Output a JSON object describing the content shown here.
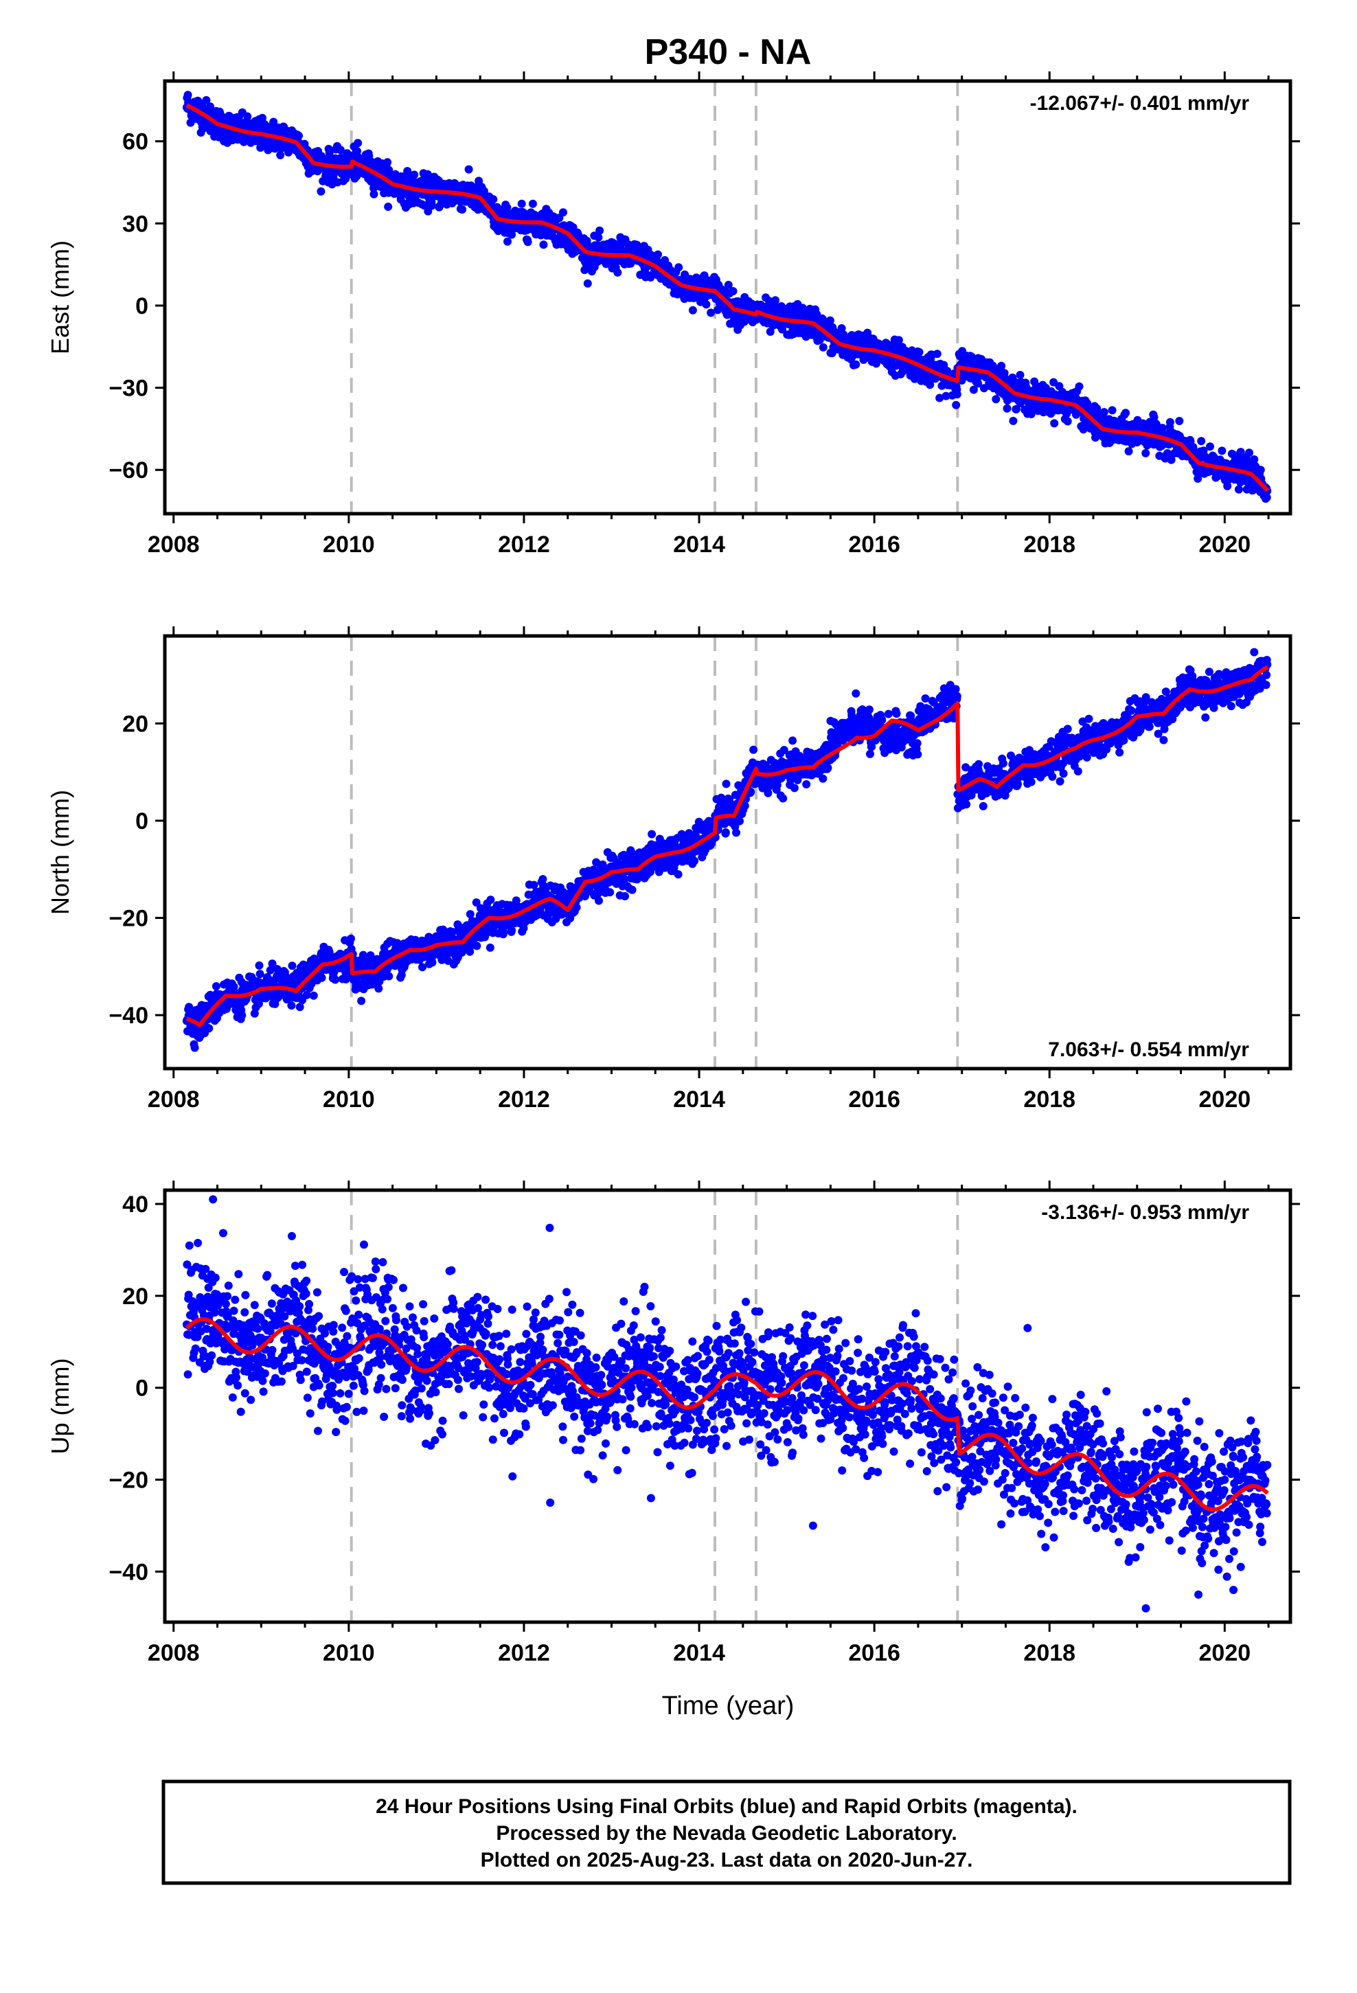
{
  "title": "P340 - NA",
  "xlabel": "Time (year)",
  "footer": {
    "line1": "24 Hour Positions Using Final Orbits (blue) and Rapid Orbits (magenta).",
    "line2": "Processed by the Nevada Geodetic Laboratory.",
    "line3": "Plotted on 2025-Aug-23. Last data on 2020-Jun-27."
  },
  "colors": {
    "points": "#0000ff",
    "model": "#ff0000",
    "events": "#bdbdbd",
    "frame": "#000000"
  },
  "chart_data": [
    {
      "type": "scatter",
      "panel": "east",
      "ylabel": "East (mm)",
      "rate_text": "-12.067+/- 0.401 mm/yr",
      "rate_position": "top-right",
      "xlim": [
        2007.9,
        2020.75
      ],
      "ylim": [
        -76,
        82
      ],
      "xticks": [
        2008,
        2010,
        2012,
        2014,
        2016,
        2018,
        2020
      ],
      "yticks": [
        -60,
        -30,
        0,
        30,
        60
      ],
      "grid": false,
      "event_lines": [
        2010.03,
        2014.18,
        2014.65,
        2016.95
      ],
      "data_range": [
        2008.15,
        2020.49
      ],
      "model": {
        "x": [
          2008.15,
          2008.5,
          2009.0,
          2009.4,
          2009.6,
          2010.03,
          2010.03,
          2010.5,
          2011.0,
          2011.5,
          2011.7,
          2012.2,
          2012.5,
          2012.7,
          2013.2,
          2013.5,
          2013.8,
          2014.18,
          2014.4,
          2014.65,
          2014.65,
          2015.0,
          2015.3,
          2015.6,
          2016.0,
          2016.5,
          2016.95,
          2016.95,
          2017.3,
          2017.6,
          2018.0,
          2018.3,
          2018.6,
          2019.0,
          2019.3,
          2019.5,
          2019.7,
          2020.0,
          2020.3,
          2020.49
        ],
        "y": [
          73,
          66,
          63,
          59,
          52,
          51,
          53,
          44,
          42,
          39,
          32,
          30,
          26,
          20,
          18,
          14,
          8,
          5,
          -2,
          -3,
          -2,
          -5,
          -7,
          -14,
          -16,
          -22,
          -27,
          -22,
          -25,
          -32,
          -34,
          -37,
          -45,
          -46,
          -49,
          -51,
          -57,
          -59,
          -62,
          -68
        ]
      },
      "scatter_noise": 2.8,
      "annual_amplitude": 0.8
    },
    {
      "type": "scatter",
      "panel": "north",
      "ylabel": "North (mm)",
      "rate_text": "7.063+/- 0.554 mm/yr",
      "rate_position": "bottom-right",
      "xlim": [
        2007.9,
        2020.75
      ],
      "ylim": [
        -51,
        38
      ],
      "xticks": [
        2008,
        2010,
        2012,
        2014,
        2016,
        2018,
        2020
      ],
      "yticks": [
        -40,
        -20,
        0,
        20
      ],
      "grid": false,
      "event_lines": [
        2010.03,
        2014.18,
        2014.65,
        2016.95
      ],
      "data_range": [
        2008.15,
        2020.49
      ],
      "model": {
        "x": [
          2008.15,
          2008.3,
          2008.6,
          2009.0,
          2009.4,
          2009.7,
          2010.03,
          2010.03,
          2010.3,
          2010.5,
          2010.7,
          2011.0,
          2011.3,
          2011.6,
          2012.0,
          2012.3,
          2012.5,
          2012.7,
          2013.0,
          2013.3,
          2013.5,
          2013.7,
          2014.0,
          2014.18,
          2014.18,
          2014.4,
          2014.65,
          2014.65,
          2015.0,
          2015.3,
          2015.5,
          2015.8,
          2016.0,
          2016.2,
          2016.5,
          2016.95,
          2016.95,
          2017.2,
          2017.4,
          2017.7,
          2018.0,
          2018.3,
          2018.6,
          2019.0,
          2019.3,
          2019.6,
          2020.0,
          2020.3,
          2020.49
        ],
        "y": [
          -41,
          -43,
          -36,
          -34,
          -36,
          -29,
          -27,
          -31,
          -32,
          -29,
          -26,
          -25,
          -26,
          -20,
          -18,
          -17,
          -19,
          -12,
          -10,
          -11,
          -8,
          -6,
          -4,
          -3,
          0,
          0,
          11,
          10,
          11,
          10,
          13,
          18,
          18,
          20,
          18,
          25,
          7,
          8,
          6,
          12,
          13,
          14,
          17,
          22,
          21,
          27,
          28,
          28,
          31
        ]
      },
      "scatter_noise": 1.8,
      "annual_amplitude": 1.2,
      "extra_points": [
        {
          "from": 2015.5,
          "to": 2015.95,
          "offset": 5
        },
        {
          "from": 2016.1,
          "to": 2016.5,
          "offset": -4
        },
        {
          "from": 2016.5,
          "to": 2016.95,
          "offset": 3
        }
      ]
    },
    {
      "type": "scatter",
      "panel": "up",
      "ylabel": "Up (mm)",
      "rate_text": "-3.136+/- 0.953 mm/yr",
      "rate_position": "top-right",
      "xlim": [
        2007.9,
        2020.75
      ],
      "ylim": [
        -51,
        43
      ],
      "xticks": [
        2008,
        2010,
        2012,
        2014,
        2016,
        2018,
        2020
      ],
      "yticks": [
        -40,
        -20,
        0,
        20,
        40
      ],
      "grid": false,
      "event_lines": [
        2010.03,
        2014.18,
        2014.65,
        2016.95
      ],
      "data_range": [
        2008.15,
        2020.49
      ],
      "model": {
        "x": [
          2008.15,
          2010.03,
          2012.0,
          2014.18,
          2014.65,
          2016.95,
          2016.97,
          2018.0,
          2019.0,
          2020.49
        ],
        "y": [
          12,
          9,
          4,
          -2,
          2,
          -4,
          -12,
          -16,
          -21,
          -25
        ]
      },
      "scatter_noise": 6.5,
      "annual_amplitude": 4.0,
      "outliers": [
        [
          2008.45,
          41
        ],
        [
          2009.35,
          33
        ],
        [
          2012.3,
          -25
        ],
        [
          2013.45,
          -24
        ],
        [
          2015.3,
          -30
        ],
        [
          2017.75,
          13
        ],
        [
          2019.1,
          -48
        ],
        [
          2019.7,
          -45
        ],
        [
          2020.1,
          -44
        ]
      ]
    }
  ]
}
